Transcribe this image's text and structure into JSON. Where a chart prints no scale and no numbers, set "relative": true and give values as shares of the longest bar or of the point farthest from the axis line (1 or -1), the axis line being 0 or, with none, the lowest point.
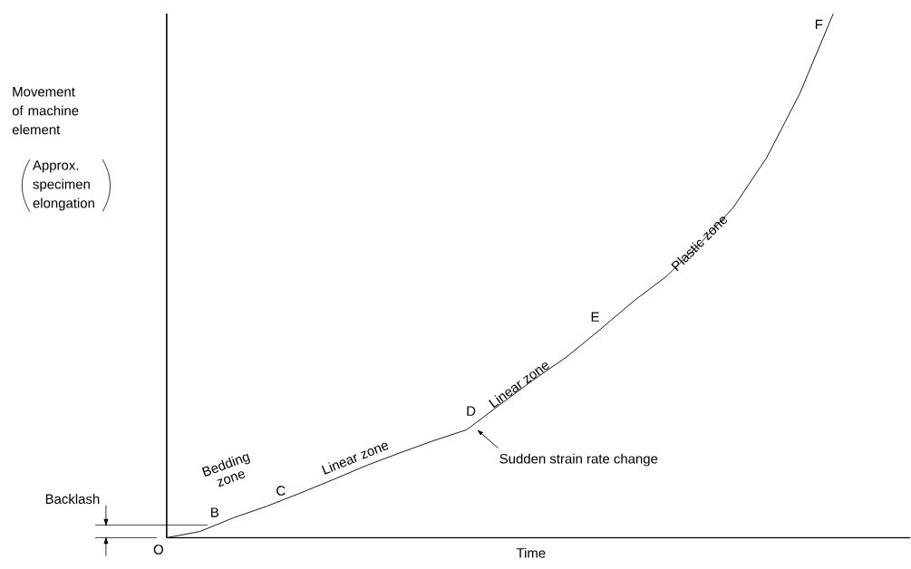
{
  "chart_data": {
    "type": "line",
    "relative": true,
    "xlabel": "Time",
    "categories": [
      null,
      null,
      null,
      null,
      null,
      null,
      null,
      null,
      null,
      null,
      null,
      null,
      null,
      null,
      null,
      null,
      null,
      null,
      null,
      null,
      null,
      null,
      null
    ],
    "values": [
      0,
      0.012,
      0.038,
      0.06,
      0.085,
      0.111,
      0.138,
      0.162,
      0.185,
      0.206,
      0.254,
      0.301,
      0.345,
      0.397,
      0.451,
      0.499,
      0.561,
      0.63,
      0.725,
      0.848,
      1,
      null,
      null
    ],
    "color": "#000000",
    "annotations": [
      "O",
      "B",
      "C",
      "D",
      "E",
      "F",
      "Bedding zone",
      "Linear zone",
      "Linear zone",
      "Plastic zone",
      "Sudden strain rate change",
      "Approx. specimen elongation",
      "Movement of machine element",
      "Backlash"
    ]
  }
}
